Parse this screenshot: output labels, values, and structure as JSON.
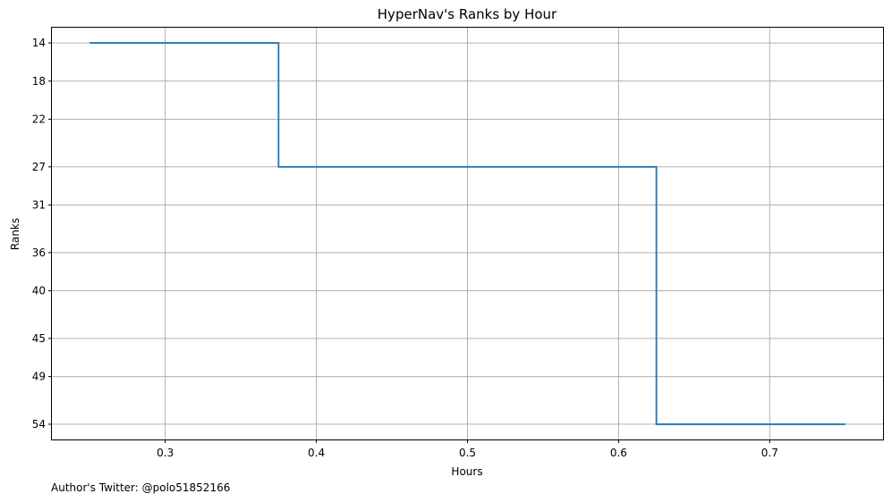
{
  "chart_data": {
    "type": "line",
    "step": "post",
    "title": "HyperNav's Ranks by Hour",
    "xlabel": "Hours",
    "ylabel": "Ranks",
    "x": [
      0.25,
      0.375,
      0.625,
      0.75
    ],
    "series": [
      {
        "values": [
          14,
          27,
          54,
          54
        ]
      }
    ],
    "xlim": [
      0.225,
      0.775
    ],
    "ylim": [
      55.6,
      12.4
    ],
    "y_inverted": true,
    "xticks": [
      0.3,
      0.4,
      0.5,
      0.6,
      0.7
    ],
    "xtick_labels": [
      "0.3",
      "0.4",
      "0.5",
      "0.6",
      "0.7"
    ],
    "yticks": [
      14,
      18,
      22,
      27,
      31,
      36,
      40,
      45,
      49,
      54
    ],
    "ytick_labels": [
      "14",
      "18",
      "22",
      "27",
      "31",
      "36",
      "40",
      "45",
      "49",
      "54"
    ],
    "grid": true,
    "line_color": "#1f77b4",
    "grid_color": "#b0b0b0"
  },
  "footer": {
    "credit": "Author's Twitter: @polo51852166"
  }
}
